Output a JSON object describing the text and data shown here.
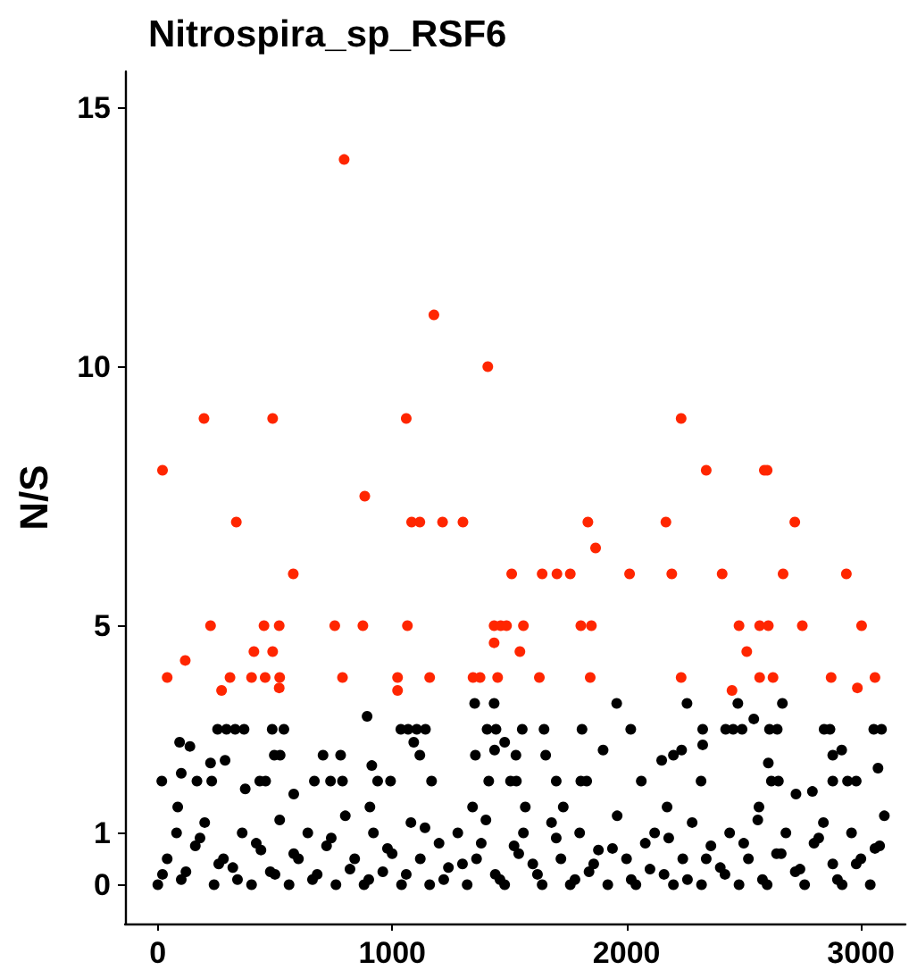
{
  "chart_data": {
    "type": "scatter",
    "title": "Nitrospira_sp_RSF6",
    "ylabel": "N/S",
    "xlim": [
      -140,
      3190
    ],
    "xticks": [
      0,
      1000,
      2000,
      3000
    ],
    "ylim": [
      -0.75,
      15.7
    ],
    "yticks": [
      0,
      1,
      5,
      10,
      15
    ],
    "grid": false,
    "marker": "circle",
    "series": [
      {
        "color": "#000000",
        "x": [
          893,
          1352,
          1435,
          1958,
          2258,
          2475,
          2665,
          2543,
          255,
          293,
          330,
          368,
          488,
          538,
          1037,
          1068,
          1105,
          1142,
          1405,
          1443,
          1555,
          1648,
          1810,
          2018,
          2325,
          2423,
          2455,
          2493,
          2610,
          2643,
          2843,
          2868,
          3055,
          3088,
          93,
          137,
          1092,
          1480,
          497,
          522,
          287,
          705,
          780,
          1118,
          1355,
          1437,
          1900,
          2325,
          2235,
          2200,
          2150,
          2918,
          1528,
          1655,
          2605,
          2880,
          17,
          100,
          225,
          167,
          230,
          435,
          460,
          668,
          737,
          788,
          913,
          938,
          993,
          1168,
          1412,
          1505,
          1530,
          1700,
          1805,
          1830,
          2063,
          2318,
          2618,
          2648,
          2880,
          2943,
          2980,
          3073,
          85,
          373,
          580,
          905,
          1343,
          1568,
          1730,
          2173,
          2565,
          2723,
          2793,
          0,
          40,
          80,
          120,
          160,
          200,
          240,
          280,
          320,
          360,
          400,
          440,
          480,
          520,
          560,
          600,
          640,
          680,
          720,
          760,
          800,
          840,
          880,
          920,
          960,
          1000,
          1040,
          1080,
          1120,
          1160,
          1200,
          1240,
          1280,
          1320,
          1360,
          1400,
          1440,
          1480,
          1520,
          1560,
          1600,
          1640,
          1680,
          1720,
          1760,
          1800,
          1840,
          1880,
          1920,
          1960,
          2000,
          2040,
          2080,
          2120,
          2160,
          2200,
          2240,
          2280,
          2320,
          2360,
          2400,
          2440,
          2480,
          2520,
          2560,
          2600,
          2640,
          2680,
          2720,
          2760,
          2800,
          2840,
          2880,
          2920,
          2960,
          3000,
          3040,
          3080,
          3100,
          20,
          100,
          180,
          260,
          340,
          420,
          500,
          580,
          660,
          740,
          820,
          900,
          980,
          1060,
          1140,
          1220,
          1300,
          1380,
          1460,
          1540,
          1620,
          1700,
          1780,
          1860,
          1940,
          2020,
          2100,
          2180,
          2260,
          2340,
          2420,
          2500,
          2580,
          2660,
          2740,
          2820,
          2900,
          2980,
          3060
        ],
        "values": [
          3.25,
          3.5,
          3.5,
          3.5,
          3.5,
          3.5,
          3.5,
          3.2,
          3,
          3,
          3,
          3,
          3,
          3,
          3,
          3,
          3,
          3,
          3,
          3,
          3,
          3,
          3,
          3,
          3,
          3,
          3,
          3,
          3,
          3,
          3,
          3,
          3,
          3,
          2.75,
          2.67,
          2.75,
          2.75,
          2.5,
          2.5,
          2.4,
          2.5,
          2.5,
          2.5,
          2.5,
          2.6,
          2.6,
          2.7,
          2.6,
          2.5,
          2.4,
          2.6,
          2.5,
          2.5,
          2.35,
          2.5,
          2,
          2.15,
          2.35,
          2,
          2,
          2,
          2,
          2,
          2,
          2,
          2.3,
          2,
          2,
          2,
          2,
          2,
          2,
          2,
          2,
          2,
          2,
          2,
          2,
          2,
          2,
          2,
          2,
          2.25,
          1.5,
          1.85,
          1.75,
          1.5,
          1.5,
          1.5,
          1.5,
          1.5,
          1.5,
          1.75,
          1.8,
          0,
          0.5,
          1,
          0.25,
          0.75,
          1.2,
          0,
          0.5,
          0.33,
          1,
          0,
          0.67,
          0.25,
          1.25,
          0,
          0.5,
          1,
          0.2,
          0.75,
          0,
          1.33,
          0.5,
          0,
          1,
          0.25,
          0.6,
          0,
          1.2,
          0.5,
          0,
          0.8,
          0.33,
          1,
          0,
          0.5,
          1.25,
          0.2,
          0,
          0.75,
          1,
          0.4,
          0,
          1.2,
          0.5,
          0,
          1,
          0.25,
          0.67,
          0,
          1.33,
          0.5,
          0,
          0.8,
          1,
          0.2,
          0,
          0.5,
          1.2,
          0,
          0.75,
          0.33,
          1,
          0,
          0.5,
          1.25,
          0,
          0.6,
          1,
          0.25,
          0,
          0.8,
          1.2,
          0.4,
          0,
          1,
          0.5,
          0,
          0.75,
          1.33,
          0.2,
          0.1,
          0.9,
          0.4,
          0.1,
          0.8,
          0.2,
          0.6,
          0.1,
          0.9,
          0.3,
          0.1,
          0.7,
          0.2,
          1.1,
          0.1,
          0.4,
          0.8,
          0.1,
          0.6,
          0.2,
          0.9,
          0.1,
          0.4,
          0.7,
          0.1,
          0.3,
          0.9,
          0.1,
          0.5,
          0.2,
          0.8,
          0.1,
          0.6,
          0.3,
          0.9,
          0.1,
          0.4,
          0.7
        ]
      },
      {
        "color": "#ff2600",
        "x": [
          795,
          1178,
          1408,
          197,
          490,
          1060,
          20,
          883,
          335,
          1083,
          1118,
          1215,
          1302,
          578,
          1510,
          225,
          453,
          518,
          755,
          875,
          1065,
          1435,
          1463,
          1488,
          1560,
          1435,
          1545,
          410,
          490,
          117,
          40,
          308,
          400,
          458,
          520,
          788,
          1023,
          1160,
          1345,
          1375,
          1450,
          272,
          518,
          1023,
          2233,
          2340,
          2588,
          2600,
          1835,
          2168,
          2718,
          1868,
          1640,
          1703,
          1760,
          2013,
          2193,
          2408,
          2668,
          2938,
          1805,
          1850,
          2480,
          2568,
          2605,
          2750,
          3003,
          2513,
          1628,
          1845,
          2233,
          2568,
          2625,
          2873,
          3060,
          2450,
          2985
        ],
        "values": [
          14,
          11,
          10,
          9,
          9,
          9,
          8,
          7.5,
          7,
          7,
          7,
          7,
          7,
          6,
          6,
          5,
          5,
          5,
          5,
          5,
          5,
          5,
          5,
          5,
          5,
          4.67,
          4.5,
          4.5,
          4.5,
          4.33,
          4,
          4,
          4,
          4,
          4,
          4,
          4,
          4,
          4,
          4,
          4,
          3.75,
          3.8,
          3.75,
          9,
          8,
          8,
          8,
          7,
          7,
          7,
          6.5,
          6,
          6,
          6,
          6,
          6,
          6,
          6,
          6,
          5,
          5,
          5,
          5,
          5,
          5,
          5,
          4.5,
          4,
          4,
          4,
          4,
          4,
          4,
          4,
          3.75,
          3.8
        ]
      }
    ]
  }
}
